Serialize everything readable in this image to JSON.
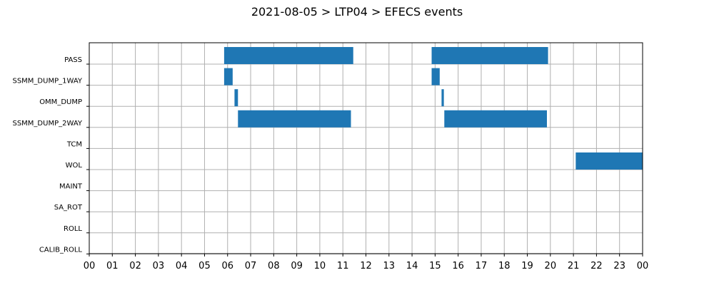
{
  "chart_data": {
    "type": "gantt",
    "title": "2021-08-05 > LTP04 > EFECS events",
    "x_tick_labels": [
      "00",
      "01",
      "02",
      "03",
      "04",
      "05",
      "06",
      "07",
      "08",
      "09",
      "10",
      "11",
      "12",
      "13",
      "14",
      "15",
      "16",
      "17",
      "18",
      "19",
      "20",
      "21",
      "22",
      "23",
      "00"
    ],
    "xlim_hours": [
      0,
      24
    ],
    "grid": true,
    "bar_color": "#1f77b4",
    "rows": [
      {
        "name": "PASS",
        "events": [
          [
            5.85,
            11.45
          ],
          [
            14.85,
            19.9
          ]
        ]
      },
      {
        "name": "SSMM_DUMP_1WAY",
        "events": [
          [
            5.85,
            6.22
          ],
          [
            14.85,
            15.2
          ]
        ]
      },
      {
        "name": "OMM_DUMP",
        "events": [
          [
            6.3,
            6.45
          ],
          [
            15.28,
            15.38
          ]
        ]
      },
      {
        "name": "SSMM_DUMP_2WAY",
        "events": [
          [
            6.45,
            11.35
          ],
          [
            15.4,
            19.85
          ]
        ]
      },
      {
        "name": "TCM",
        "events": []
      },
      {
        "name": "WOL",
        "events": [
          [
            21.1,
            24.0
          ]
        ]
      },
      {
        "name": "MAINT",
        "events": []
      },
      {
        "name": "SA_ROT",
        "events": []
      },
      {
        "name": "ROLL",
        "events": []
      },
      {
        "name": "CALIB_ROLL",
        "events": []
      }
    ]
  }
}
